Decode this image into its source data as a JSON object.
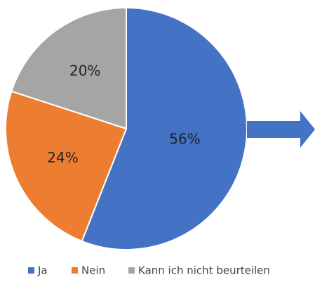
{
  "chart_data": {
    "type": "pie",
    "categories": [
      "Ja",
      "Nein",
      "Kann ich nicht beurteilen"
    ],
    "values": [
      56,
      24,
      20
    ],
    "value_labels": [
      "56%",
      "24%",
      "20%"
    ],
    "colors": [
      "#4472c4",
      "#ed7d31",
      "#a5a5a5"
    ],
    "legend": "bottom"
  }
}
